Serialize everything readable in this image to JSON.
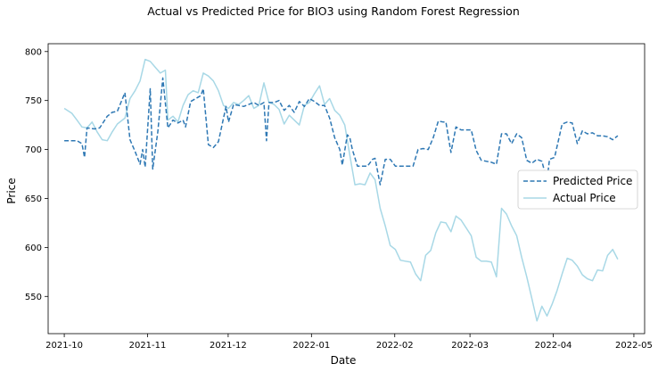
{
  "chart_data": {
    "type": "line",
    "title": "Actual vs Predicted Price for BIO3 using Random Forest Regression",
    "xlabel": "Date",
    "ylabel": "Price",
    "xlim": [
      "2021-09-25",
      "2022-05-05"
    ],
    "ylim": [
      512,
      808
    ],
    "x_ticks": [
      "2021-10",
      "2021-11",
      "2021-12",
      "2022-01",
      "2022-02",
      "2022-03",
      "2022-04",
      "2022-05"
    ],
    "y_ticks": [
      550,
      600,
      650,
      700,
      750,
      800
    ],
    "grid": false,
    "legend": "center-right",
    "series": [
      {
        "name": "Predicted Price",
        "color": "#2e78b4",
        "style": "dashed",
        "points": [
          [
            "2021-10-01",
            709
          ],
          [
            "2021-10-04",
            709
          ],
          [
            "2021-10-06",
            709
          ],
          [
            "2021-10-08",
            706
          ],
          [
            "2021-10-09",
            692
          ],
          [
            "2021-10-10",
            722
          ],
          [
            "2021-10-13",
            721
          ],
          [
            "2021-10-15",
            722
          ],
          [
            "2021-10-18",
            734
          ],
          [
            "2021-10-20",
            738
          ],
          [
            "2021-10-22",
            739
          ],
          [
            "2021-10-25",
            758
          ],
          [
            "2021-10-27",
            710
          ],
          [
            "2021-10-29",
            698
          ],
          [
            "2021-10-31",
            685
          ],
          [
            "2021-11-01",
            700
          ],
          [
            "2021-11-02",
            682
          ],
          [
            "2021-11-04",
            762
          ],
          [
            "2021-11-05",
            680
          ],
          [
            "2021-11-07",
            718
          ],
          [
            "2021-11-09",
            773
          ],
          [
            "2021-11-11",
            722
          ],
          [
            "2021-11-13",
            730
          ],
          [
            "2021-11-15",
            727
          ],
          [
            "2021-11-17",
            730
          ],
          [
            "2021-11-18",
            723
          ],
          [
            "2021-11-20",
            749
          ],
          [
            "2021-11-22",
            752
          ],
          [
            "2021-11-24",
            755
          ],
          [
            "2021-11-25",
            762
          ],
          [
            "2021-11-27",
            705
          ],
          [
            "2021-11-29",
            702
          ],
          [
            "2021-12-01",
            708
          ],
          [
            "2021-12-04",
            744
          ],
          [
            "2021-12-05",
            728
          ],
          [
            "2021-12-07",
            746
          ],
          [
            "2021-12-09",
            745
          ],
          [
            "2021-12-11",
            744
          ],
          [
            "2021-12-13",
            746
          ],
          [
            "2021-12-15",
            748
          ],
          [
            "2021-12-17",
            745
          ],
          [
            "2021-12-19",
            748
          ],
          [
            "2021-12-20",
            709
          ],
          [
            "2021-12-21",
            748
          ],
          [
            "2021-12-23",
            748
          ],
          [
            "2021-12-25",
            750
          ],
          [
            "2021-12-27",
            740
          ],
          [
            "2021-12-29",
            745
          ],
          [
            "2021-12-31",
            738
          ],
          [
            "2022-01-02",
            749
          ],
          [
            "2022-01-04",
            744
          ],
          [
            "2022-01-06",
            752
          ],
          [
            "2022-01-08",
            749
          ],
          [
            "2022-01-10",
            745
          ],
          [
            "2022-01-12",
            745
          ],
          [
            "2022-01-14",
            732
          ],
          [
            "2022-01-16",
            712
          ],
          [
            "2022-01-18",
            700
          ],
          [
            "2022-01-19",
            684
          ],
          [
            "2022-01-21",
            715
          ],
          [
            "2022-01-22",
            712
          ],
          [
            "2022-01-23",
            700
          ],
          [
            "2022-01-25",
            683
          ],
          [
            "2022-01-27",
            683
          ],
          [
            "2022-01-29",
            683
          ],
          [
            "2022-01-31",
            690
          ],
          [
            "2022-02-01",
            691
          ],
          [
            "2022-02-03",
            664
          ],
          [
            "2022-02-05",
            690
          ],
          [
            "2022-02-07",
            690
          ],
          [
            "2022-02-09",
            683
          ],
          [
            "2022-02-11",
            683
          ],
          [
            "2022-02-14",
            683
          ],
          [
            "2022-02-16",
            683
          ],
          [
            "2022-02-18",
            700
          ],
          [
            "2022-02-20",
            701
          ],
          [
            "2022-02-22",
            700
          ],
          [
            "2022-02-24",
            712
          ],
          [
            "2022-02-26",
            729
          ],
          [
            "2022-02-28",
            728
          ],
          [
            "2022-03-01",
            728
          ],
          [
            "2022-03-03",
            697
          ],
          [
            "2022-03-05",
            723
          ],
          [
            "2022-03-07",
            720
          ],
          [
            "2022-03-09",
            720
          ],
          [
            "2022-03-11",
            720
          ],
          [
            "2022-03-13",
            699
          ],
          [
            "2022-03-15",
            689
          ],
          [
            "2022-03-17",
            688
          ],
          [
            "2022-03-19",
            687
          ],
          [
            "2022-03-21",
            685
          ],
          [
            "2022-03-23",
            716
          ],
          [
            "2022-03-25",
            716
          ],
          [
            "2022-03-27",
            706
          ],
          [
            "2022-03-29",
            716
          ],
          [
            "2022-03-31",
            712
          ],
          [
            "2022-04-02",
            689
          ],
          [
            "2022-04-04",
            686
          ],
          [
            "2022-04-06",
            690
          ],
          [
            "2022-04-08",
            688
          ],
          [
            "2022-04-10",
            668
          ],
          [
            "2022-04-11",
            690
          ],
          [
            "2022-04-13",
            692
          ],
          [
            "2022-04-16",
            726
          ],
          [
            "2022-04-18",
            728
          ],
          [
            "2022-04-20",
            727
          ],
          [
            "2022-04-22",
            706
          ],
          [
            "2022-04-24",
            719
          ],
          [
            "2022-04-26",
            716
          ],
          [
            "2022-04-28",
            717
          ],
          [
            "2022-04-30",
            714
          ],
          [
            "2022-05-02",
            714
          ],
          [
            "2022-05-04",
            713
          ],
          [
            "2022-05-06",
            710
          ],
          [
            "2022-05-08",
            714
          ]
        ]
      },
      {
        "name": "Actual Price",
        "color": "#a8d8e6",
        "style": "solid",
        "points": [
          [
            "2021-10-01",
            742
          ],
          [
            "2021-10-04",
            737
          ],
          [
            "2021-10-06",
            730
          ],
          [
            "2021-10-08",
            723
          ],
          [
            "2021-10-10",
            722
          ],
          [
            "2021-10-12",
            728
          ],
          [
            "2021-10-14",
            718
          ],
          [
            "2021-10-16",
            710
          ],
          [
            "2021-10-18",
            709
          ],
          [
            "2021-10-20",
            718
          ],
          [
            "2021-10-22",
            726
          ],
          [
            "2021-10-25",
            732
          ],
          [
            "2021-10-27",
            752
          ],
          [
            "2021-10-29",
            760
          ],
          [
            "2021-10-31",
            770
          ],
          [
            "2021-11-02",
            792
          ],
          [
            "2021-11-04",
            790
          ],
          [
            "2021-11-06",
            784
          ],
          [
            "2021-11-08",
            778
          ],
          [
            "2021-11-10",
            781
          ],
          [
            "2021-11-11",
            730
          ],
          [
            "2021-11-13",
            734
          ],
          [
            "2021-11-15",
            728
          ],
          [
            "2021-11-17",
            745
          ],
          [
            "2021-11-19",
            756
          ],
          [
            "2021-11-21",
            760
          ],
          [
            "2021-11-23",
            758
          ],
          [
            "2021-11-25",
            778
          ],
          [
            "2021-11-27",
            775
          ],
          [
            "2021-11-29",
            770
          ],
          [
            "2021-12-01",
            760
          ],
          [
            "2021-12-03",
            745
          ],
          [
            "2021-12-05",
            742
          ],
          [
            "2021-12-07",
            748
          ],
          [
            "2021-12-09",
            746
          ],
          [
            "2021-12-11",
            750
          ],
          [
            "2021-12-13",
            755
          ],
          [
            "2021-12-15",
            742
          ],
          [
            "2021-12-17",
            745
          ],
          [
            "2021-12-19",
            768
          ],
          [
            "2021-12-21",
            748
          ],
          [
            "2021-12-23",
            746
          ],
          [
            "2021-12-25",
            741
          ],
          [
            "2021-12-27",
            726
          ],
          [
            "2021-12-29",
            735
          ],
          [
            "2021-12-31",
            730
          ],
          [
            "2022-01-02",
            725
          ],
          [
            "2022-01-04",
            745
          ],
          [
            "2022-01-06",
            748
          ],
          [
            "2022-01-08",
            757
          ],
          [
            "2022-01-10",
            765
          ],
          [
            "2022-01-12",
            746
          ],
          [
            "2022-01-14",
            752
          ],
          [
            "2022-01-16",
            740
          ],
          [
            "2022-01-18",
            735
          ],
          [
            "2022-01-20",
            725
          ],
          [
            "2022-01-22",
            694
          ],
          [
            "2022-01-24",
            664
          ],
          [
            "2022-01-26",
            665
          ],
          [
            "2022-01-28",
            664
          ],
          [
            "2022-01-30",
            676
          ],
          [
            "2022-02-01",
            669
          ],
          [
            "2022-02-03",
            640
          ],
          [
            "2022-02-05",
            622
          ],
          [
            "2022-02-07",
            602
          ],
          [
            "2022-02-09",
            598
          ],
          [
            "2022-02-11",
            587
          ],
          [
            "2022-02-13",
            586
          ],
          [
            "2022-02-15",
            585
          ],
          [
            "2022-02-17",
            573
          ],
          [
            "2022-02-19",
            566
          ],
          [
            "2022-02-21",
            592
          ],
          [
            "2022-02-23",
            597
          ],
          [
            "2022-02-25",
            615
          ],
          [
            "2022-02-27",
            626
          ],
          [
            "2022-03-01",
            625
          ],
          [
            "2022-03-03",
            616
          ],
          [
            "2022-03-05",
            632
          ],
          [
            "2022-03-07",
            628
          ],
          [
            "2022-03-09",
            620
          ],
          [
            "2022-03-11",
            612
          ],
          [
            "2022-03-13",
            590
          ],
          [
            "2022-03-15",
            586
          ],
          [
            "2022-03-17",
            586
          ],
          [
            "2022-03-19",
            585
          ],
          [
            "2022-03-21",
            570
          ],
          [
            "2022-03-23",
            640
          ],
          [
            "2022-03-25",
            634
          ],
          [
            "2022-03-27",
            622
          ],
          [
            "2022-03-29",
            612
          ],
          [
            "2022-03-31",
            590
          ],
          [
            "2022-04-02",
            570
          ],
          [
            "2022-04-04",
            548
          ],
          [
            "2022-04-06",
            525
          ],
          [
            "2022-04-08",
            540
          ],
          [
            "2022-04-10",
            530
          ],
          [
            "2022-04-12",
            542
          ],
          [
            "2022-04-14",
            556
          ],
          [
            "2022-04-16",
            573
          ],
          [
            "2022-04-18",
            589
          ],
          [
            "2022-04-20",
            587
          ],
          [
            "2022-04-22",
            581
          ],
          [
            "2022-04-24",
            572
          ],
          [
            "2022-04-26",
            568
          ],
          [
            "2022-04-28",
            566
          ],
          [
            "2022-04-30",
            577
          ],
          [
            "2022-05-02",
            576
          ],
          [
            "2022-05-04",
            592
          ],
          [
            "2022-05-06",
            598
          ],
          [
            "2022-05-08",
            588
          ]
        ]
      }
    ]
  }
}
